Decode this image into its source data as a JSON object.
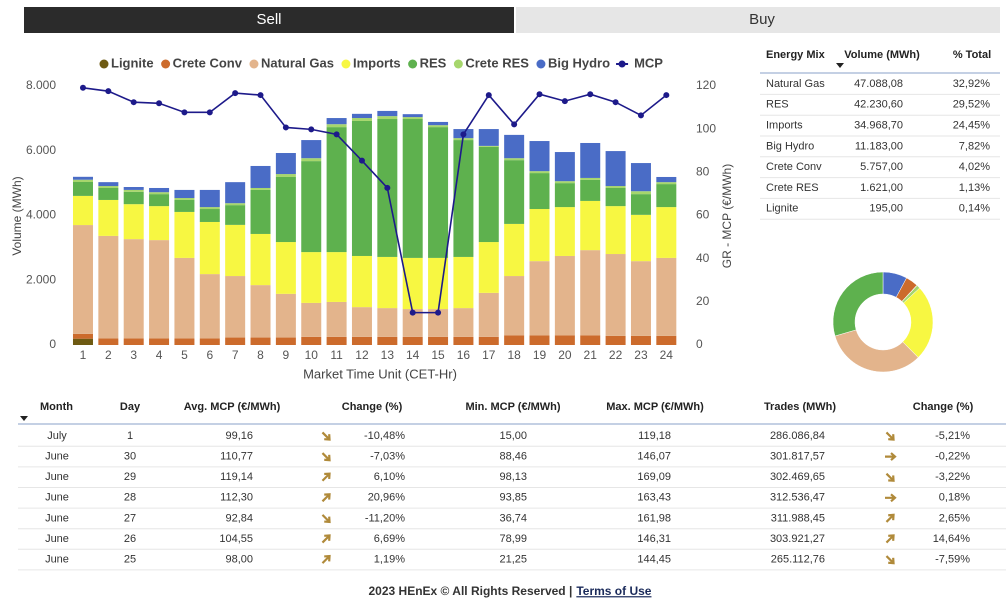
{
  "tabs": [
    "Sell",
    "Buy"
  ],
  "chart_data": [
    {
      "type": "bar",
      "stacked": true,
      "legend": "top",
      "xlabel": "Market Time Unit (CET-Hr)",
      "ylabel": "Volume (MWh)",
      "y2label": "GR - MCP (€/MWh)",
      "categories": [
        "1",
        "2",
        "3",
        "4",
        "5",
        "6",
        "7",
        "8",
        "9",
        "10",
        "11",
        "12",
        "13",
        "14",
        "15",
        "16",
        "17",
        "18",
        "19",
        "20",
        "21",
        "22",
        "23",
        "24"
      ],
      "ylim": [
        0,
        8000
      ],
      "yticks": [
        0,
        {
          "value": 2000,
          "label": "2.000"
        },
        {
          "value": 4000,
          "label": "4.000"
        },
        {
          "value": 6000,
          "label": "6.000"
        },
        {
          "value": 8000,
          "label": "8.000"
        }
      ],
      "y2lim": [
        0,
        120
      ],
      "y2ticks": [
        0,
        20,
        40,
        60,
        80,
        100,
        120
      ],
      "series": [
        {
          "name": "Lignite",
          "color": "#6e5a12",
          "values": [
            195,
            0,
            0,
            0,
            0,
            0,
            0,
            0,
            0,
            0,
            0,
            0,
            0,
            0,
            0,
            0,
            0,
            0,
            0,
            0,
            0,
            0,
            0,
            0
          ]
        },
        {
          "name": "Crete Conv",
          "color": "#cc6b2c",
          "values": [
            150,
            200,
            200,
            200,
            200,
            200,
            230,
            230,
            230,
            250,
            250,
            250,
            250,
            250,
            250,
            250,
            250,
            300,
            300,
            300,
            300,
            280,
            280,
            280
          ]
        },
        {
          "name": "Natural Gas",
          "color": "#e3b48c",
          "values": [
            3360,
            3170,
            3070,
            3040,
            2490,
            1990,
            1900,
            1620,
            1350,
            1050,
            1080,
            920,
            890,
            860,
            860,
            890,
            1360,
            1830,
            2290,
            2450,
            2630,
            2530,
            2310,
            2410
          ]
        },
        {
          "name": "Imports",
          "color": "#f7f742",
          "values": [
            900,
            1110,
            1080,
            1050,
            1420,
            1610,
            1580,
            1580,
            1600,
            1570,
            1540,
            1580,
            1580,
            1580,
            1580,
            1580,
            1570,
            1610,
            1610,
            1510,
            1520,
            1480,
            1430,
            1570
          ]
        },
        {
          "name": "RES",
          "color": "#5eb14e",
          "values": [
            430,
            370,
            380,
            370,
            370,
            400,
            610,
            1360,
            2010,
            2810,
            3860,
            4170,
            4260,
            4290,
            4040,
            3610,
            2940,
            1970,
            1110,
            740,
            650,
            560,
            640,
            710
          ]
        },
        {
          "name": "Crete RES",
          "color": "#a6d66c",
          "values": [
            70,
            60,
            60,
            60,
            60,
            60,
            60,
            60,
            90,
            90,
            90,
            90,
            90,
            60,
            60,
            60,
            30,
            60,
            60,
            60,
            60,
            60,
            90,
            60
          ]
        },
        {
          "name": "Big Hydro",
          "color": "#4a6cc6",
          "values": [
            90,
            120,
            90,
            130,
            250,
            530,
            650,
            680,
            650,
            560,
            190,
            130,
            160,
            90,
            100,
            280,
            520,
            720,
            930,
            900,
            1080,
            1080,
            870,
            160
          ]
        },
        {
          "name": "MCP",
          "color": "#1d1a8a",
          "axis": "y2",
          "values": [
            119.18,
            117.6,
            112.5,
            112,
            107.8,
            107.8,
            116.7,
            115.8,
            100.8,
            99.9,
            97.6,
            85.4,
            72.8,
            15,
            15,
            97.6,
            115.8,
            102.2,
            116.2,
            113,
            116.2,
            112.5,
            106.4,
            115.8
          ]
        }
      ]
    },
    {
      "type": "pie",
      "donut": true,
      "values": [
        7.82,
        4.02,
        0.14,
        1.13,
        24.45,
        32.92,
        29.52
      ],
      "colors": [
        "#4a6cc6",
        "#cc6b2c",
        "#6e5a12",
        "#a6d66c",
        "#f7f742",
        "#e3b48c",
        "#5eb14e"
      ]
    }
  ],
  "energy_mix": {
    "columns": [
      "Energy Mix",
      "Volume (MWh)",
      "% Total"
    ],
    "rows": [
      [
        "Natural Gas",
        "47.088,08",
        "32,92%"
      ],
      [
        "RES",
        "42.230,60",
        "29,52%"
      ],
      [
        "Imports",
        "34.968,70",
        "24,45%"
      ],
      [
        "Big Hydro",
        "11.183,00",
        "7,82%"
      ],
      [
        "Crete Conv",
        "5.757,00",
        "4,02%"
      ],
      [
        "Crete RES",
        "1.621,00",
        "1,13%"
      ],
      [
        "Lignite",
        "195,00",
        "0,14%"
      ]
    ]
  },
  "daily_table": {
    "columns": [
      "Month",
      "Day",
      "Avg. MCP (€/MWh)",
      "Change (%)",
      "Min. MCP (€/MWh)",
      "Max. MCP (€/MWh)",
      "Trades (MWh)",
      "Change (%)"
    ],
    "rows": [
      [
        "July",
        "1",
        "99,16",
        "-10,48%",
        "15,00",
        "119,18",
        "286.086,84",
        "-5,21%"
      ],
      [
        "June",
        "30",
        "110,77",
        "-7,03%",
        "88,46",
        "146,07",
        "301.817,57",
        "-0,22%"
      ],
      [
        "June",
        "29",
        "119,14",
        "6,10%",
        "98,13",
        "169,09",
        "302.469,65",
        "-3,22%"
      ],
      [
        "June",
        "28",
        "112,30",
        "20,96%",
        "93,85",
        "163,43",
        "312.536,47",
        "0,18%"
      ],
      [
        "June",
        "27",
        "92,84",
        "-11,20%",
        "36,74",
        "161,98",
        "311.988,45",
        "2,65%"
      ],
      [
        "June",
        "26",
        "104,55",
        "6,69%",
        "78,99",
        "146,31",
        "303.921,27",
        "14,64%"
      ],
      [
        "June",
        "25",
        "98,00",
        "1,19%",
        "21,25",
        "144,45",
        "265.112,76",
        "-7,59%"
      ]
    ]
  },
  "footer": {
    "text": "2023 HEnEx © All Rights Reserved |",
    "link": "Terms of Use"
  }
}
